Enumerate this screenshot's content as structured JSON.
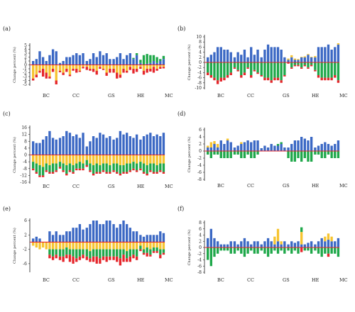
{
  "panels": [
    {
      "label": "(a)",
      "ylabel": "Change percent (%)",
      "ticks": [
        "5",
        "4",
        "3",
        "2",
        "1",
        "0",
        "-1",
        "-2",
        "-3",
        "-4",
        "-5"
      ],
      "groups": [
        "BC",
        "CC",
        "GS",
        "HE",
        "MC"
      ]
    },
    {
      "label": "(b)",
      "ylabel": "Change percent (%)",
      "ticks": [
        "10",
        "8",
        "6",
        "4",
        "2",
        "0",
        "-2",
        "-4",
        "-6",
        "-8",
        "-10"
      ],
      "groups": [
        "BC",
        "CC",
        "GS",
        "HE",
        "MC"
      ]
    },
    {
      "label": "(c)",
      "ylabel": "Change percent (%)",
      "ticks": [
        "16",
        "12",
        "8",
        "4",
        "0",
        "-4",
        "-8",
        "-12",
        "-16"
      ],
      "groups": [
        "BC",
        "CC",
        "GS",
        "HE",
        "MC"
      ]
    },
    {
      "label": "(d)",
      "ylabel": "Change percent (%)",
      "ticks": [
        "6",
        "4",
        "2",
        "0",
        "-2",
        "-4",
        "-6",
        "-8"
      ],
      "groups": [
        "BC",
        "CC",
        "GS",
        "HE",
        "MC"
      ]
    },
    {
      "label": "(e)",
      "ylabel": "Change percent (%)",
      "ticks": [
        "6",
        "2",
        "-2",
        "-6"
      ],
      "groups": [
        "BC",
        "CC",
        "GS",
        "HE",
        "MC"
      ]
    },
    {
      "label": "(f)",
      "ylabel": "Change percent (%)",
      "ticks": [
        "8",
        "6",
        "4",
        "2",
        "0",
        "-2",
        "-4",
        "-6",
        "-8"
      ],
      "groups": [
        "BC",
        "CC",
        "GS",
        "HE",
        "MC"
      ]
    }
  ],
  "colors": {
    "blue": "#3b68c4",
    "green": "#1fa84a",
    "yellow": "#f6c430",
    "red": "#e5262b",
    "axis": "#222222"
  },
  "chart_data": [
    {
      "panel": "(a)",
      "type": "bar",
      "stacked": true,
      "ylim": [
        -5,
        5
      ],
      "categories_per_group": [
        8,
        8,
        8,
        8,
        8
      ],
      "blue": [
        1,
        1.5,
        3.5,
        2,
        1,
        2.5,
        4,
        3.5,
        0.5,
        1,
        2,
        2,
        2.5,
        3,
        2.5,
        3,
        1,
        1.5,
        3,
        2,
        3.5,
        2.5,
        3,
        1.5,
        1.5,
        2,
        3,
        1.5,
        2.5,
        3,
        1.5,
        2.5,
        0.5,
        0,
        0.3,
        0.5,
        1,
        0.5,
        1,
        1.5
      ],
      "green": [
        0,
        0,
        0,
        0,
        0,
        0,
        0,
        0,
        0,
        0,
        0,
        0,
        0,
        0,
        0,
        0,
        0,
        0,
        0,
        0,
        0,
        0,
        0,
        0,
        0,
        0,
        0,
        0,
        0,
        0,
        0.3,
        0.5,
        0.8,
        2.5,
        2.5,
        2,
        1.5,
        1.5,
        0.5,
        0.8
      ],
      "yellow": [
        -3.5,
        -2.5,
        -1.5,
        -1,
        -2,
        -3,
        -1,
        -4,
        -1.5,
        -2,
        -1,
        -2.5,
        -1,
        -1,
        -1.5,
        -0.5,
        -0.5,
        -1,
        -1,
        -1.5,
        -0.5,
        -1,
        -2,
        -1,
        -1,
        -2,
        -2.5,
        -1,
        -1.5,
        -0.5,
        -1,
        -1,
        -0.5,
        -1.5,
        -1,
        -1,
        -0.5,
        -1,
        -0.5,
        -0.5
      ],
      "red": [
        -0.5,
        -0.7,
        -0.5,
        -2,
        -1.5,
        -0.5,
        -0.8,
        -1,
        -0.4,
        -0.6,
        -0.8,
        -0.4,
        -0.5,
        -1,
        -0.3,
        -0.4,
        -0.8,
        -0.5,
        -0.8,
        -1,
        -0.5,
        -0.3,
        -0.8,
        -1,
        -1,
        -1.5,
        -0.8,
        -1,
        -0.5,
        -0.8,
        -1.2,
        -0.8,
        -0.5,
        -1,
        -1,
        -0.7,
        -1.5,
        -0.5,
        -0.5,
        -0.4
      ]
    },
    {
      "panel": "(b)",
      "type": "bar",
      "stacked": true,
      "ylim": [
        -10,
        10
      ],
      "categories_per_group": [
        8,
        8,
        8,
        8,
        8
      ],
      "blue": [
        2,
        3,
        4,
        6,
        6,
        5,
        5,
        4,
        2,
        4,
        3,
        5,
        2,
        6,
        3,
        5,
        2,
        5,
        7,
        6,
        6,
        6,
        5,
        2,
        1,
        2,
        1,
        1,
        2,
        2,
        3,
        2,
        2,
        6,
        6,
        6,
        7,
        5,
        6,
        7
      ],
      "yellow": [
        0,
        0,
        0,
        0,
        0,
        0,
        0,
        0,
        0,
        0,
        0,
        0,
        0,
        0,
        0,
        0,
        0,
        0,
        0,
        0,
        0,
        0,
        0,
        0,
        0.5,
        0.8,
        0.5,
        0.3,
        0.2,
        0.4,
        0.3,
        0.2,
        0.5,
        0,
        0,
        0,
        0,
        0,
        0,
        0.5
      ],
      "green": [
        -4,
        -5,
        -6,
        -7,
        -6,
        -6,
        -5,
        -4,
        -2,
        -3,
        -5,
        -4,
        -2,
        -5,
        -3,
        -4,
        -5,
        -6,
        -6,
        -7,
        -6,
        -6,
        -7,
        -5,
        0,
        -2,
        -1,
        -1,
        -2,
        -1,
        -2,
        -1,
        -3,
        -5,
        -6,
        -6,
        -6,
        -6,
        -5,
        -7
      ],
      "red": [
        -1,
        -1,
        -1,
        -1.5,
        -1.5,
        -1,
        -1,
        -1,
        -0.5,
        -0.5,
        -1,
        -1,
        -0.5,
        -1,
        -0.5,
        -0.5,
        -0.5,
        -1,
        -1,
        -1,
        -1,
        -1,
        -1,
        -0.5,
        -0.5,
        -0.5,
        -0.5,
        -0.5,
        -0.5,
        -0.5,
        -0.5,
        -0.5,
        -0.5,
        -1,
        -1,
        -1,
        -1,
        -1,
        -1,
        -1
      ]
    },
    {
      "panel": "(c)",
      "type": "bar",
      "stacked": true,
      "ylim": [
        -16,
        16
      ],
      "categories_per_group": [
        8,
        8,
        8,
        8,
        8
      ],
      "blue": [
        8,
        7,
        7,
        9,
        11,
        14,
        10,
        9,
        10,
        11,
        14,
        13,
        11,
        12,
        10,
        13,
        5,
        8,
        11,
        10,
        13,
        12,
        10,
        11,
        9,
        10,
        14,
        12,
        13,
        11,
        10,
        12,
        9,
        11,
        12,
        13,
        11,
        12,
        11,
        13
      ],
      "red": [
        -1,
        -1,
        -1,
        -1,
        -1,
        -1,
        -1,
        -1,
        -1,
        -1,
        -1,
        -1,
        -1,
        -1,
        -1,
        -1,
        -1,
        -1,
        -1,
        -1,
        -1,
        -1,
        -1,
        -1,
        -1,
        -1,
        -1,
        -1,
        -1,
        -1,
        -1,
        -1,
        -1,
        -1,
        -1,
        -1,
        -1,
        -1,
        -1,
        -1
      ],
      "yellow": [
        -4,
        -5,
        -6,
        -7,
        -5,
        -6,
        -5,
        -5,
        -4,
        -5,
        -6,
        -5,
        -6,
        -5,
        -4,
        -5,
        -3,
        -5,
        -6,
        -5,
        -6,
        -5,
        -5,
        -6,
        -5,
        -5,
        -6,
        -6,
        -5,
        -5,
        -4,
        -5,
        -4,
        -5,
        -6,
        -5,
        -5,
        -6,
        -5,
        -5
      ],
      "green": [
        -4,
        -5,
        -6,
        -5,
        -4,
        -4,
        -5,
        -4,
        -3,
        -4,
        -5,
        -4,
        -4,
        -3,
        -4,
        -3,
        -3,
        -4,
        -5,
        -5,
        -4,
        -4,
        -5,
        -4,
        -4,
        -5,
        -5,
        -4,
        -5,
        -4,
        -4,
        -4,
        -4,
        -5,
        -5,
        -4,
        -5,
        -4,
        -4,
        -5
      ]
    },
    {
      "panel": "(d)",
      "type": "bar",
      "stacked": true,
      "ylim": [
        -8,
        6
      ],
      "categories_per_group": [
        8,
        8,
        8,
        8,
        8
      ],
      "blue": [
        1,
        1,
        2,
        1,
        3,
        2,
        3,
        2.5,
        1,
        1.5,
        2,
        2.5,
        3,
        2.5,
        3,
        3,
        0.8,
        1.5,
        1,
        2,
        1.5,
        1.5,
        2,
        1,
        1,
        2,
        3,
        3,
        4,
        3.5,
        3,
        4,
        1,
        1.5,
        2,
        2.5,
        2,
        1.5,
        2,
        3
      ],
      "yellow": [
        0.5,
        1.5,
        0.8,
        1,
        0,
        0,
        0.5,
        0,
        0,
        0,
        0.5,
        0,
        0,
        0,
        0,
        0,
        0,
        0,
        0,
        0,
        0,
        0,
        0,
        0,
        0,
        0,
        0,
        0,
        0,
        0,
        0,
        0,
        0,
        0,
        0,
        0,
        0,
        0,
        0,
        0
      ],
      "green": [
        -1,
        -2,
        -1,
        -1,
        -2,
        -2,
        -2,
        -2,
        -1,
        -1,
        -2,
        -2,
        -1,
        -2,
        -2,
        -1,
        0,
        0,
        0,
        0,
        0,
        0.5,
        0.5,
        0,
        -2,
        -3,
        -3,
        -2,
        -3,
        -2,
        -3,
        -3,
        -1,
        -1,
        -2,
        -2,
        -1,
        -2,
        -2,
        -2
      ],
      "red": [
        0,
        0,
        0,
        0,
        0,
        0,
        0,
        0,
        0,
        0,
        0,
        0,
        0,
        0,
        0,
        0,
        0,
        0,
        0,
        0,
        0,
        0,
        0,
        0,
        0,
        0,
        0,
        0,
        0,
        0,
        0,
        0,
        0,
        0,
        0,
        0,
        0,
        0,
        0,
        0
      ]
    },
    {
      "panel": "(e)",
      "type": "bar",
      "stacked": true,
      "ylim": [
        -8,
        6
      ],
      "categories_per_group": [
        8,
        8,
        8,
        8,
        8
      ],
      "blue": [
        1,
        1.5,
        1,
        0,
        0,
        3,
        2,
        3,
        2,
        2,
        3,
        3,
        4,
        4,
        5,
        3.5,
        4,
        5,
        6,
        6,
        5,
        5,
        6,
        6,
        5,
        4,
        5,
        6,
        5,
        4,
        3,
        3,
        2,
        1.5,
        2,
        2,
        2,
        2,
        3,
        2.5
      ],
      "red": [
        0,
        0,
        0,
        0,
        0,
        -1,
        -1,
        -1,
        -1,
        -1.5,
        -1,
        -2,
        -2,
        -1,
        -1,
        -1,
        -1,
        -1,
        -1.5,
        -2,
        -1.5,
        -1,
        -1.5,
        -1,
        -1,
        -1.5,
        -2,
        -2,
        -1,
        -1.5,
        -1,
        -1,
        -0.5,
        -0.5,
        -1,
        -0.5,
        -0.5,
        -0.5,
        -1,
        -0.5
      ],
      "yellow": [
        -1,
        -1.5,
        -2,
        -1.5,
        -2,
        -2,
        -2,
        -2,
        -2,
        -2,
        -1.5,
        -2,
        -2,
        -2,
        -2,
        -2,
        -2,
        -2.5,
        -2,
        -2,
        -2,
        -2,
        -2,
        -2,
        -2,
        -2,
        -2,
        -2,
        -2.5,
        -2,
        -2,
        -2,
        -1,
        -2,
        -1.5,
        -2,
        -1.5,
        -1.5,
        -2,
        -2
      ],
      "green": [
        0,
        0,
        0,
        0,
        0,
        -1.5,
        -2,
        -1.5,
        -2,
        -2,
        -2,
        -1.5,
        -2,
        -2.5,
        -2,
        -1.5,
        -2,
        -2,
        -2,
        -2,
        -2.5,
        -2,
        -2,
        -2,
        -2,
        -2,
        -2.5,
        -1.5,
        -2,
        -2,
        -1.5,
        -2,
        -1,
        -1,
        -1.5,
        -1.5,
        -1,
        -1,
        -1.5,
        -1
      ]
    },
    {
      "panel": "(f)",
      "type": "bar",
      "stacked": true,
      "ylim": [
        -8,
        8
      ],
      "categories_per_group": [
        8,
        8,
        8,
        8,
        8
      ],
      "blue": [
        3,
        6,
        3,
        2,
        1,
        1,
        1,
        2,
        2,
        1,
        2,
        3,
        2,
        1,
        2,
        2,
        1,
        2,
        3,
        2,
        1,
        2,
        1,
        2,
        1,
        2,
        1.5,
        2,
        1,
        1,
        1.5,
        2,
        1,
        2,
        3,
        2,
        2.5,
        2,
        2,
        3
      ],
      "yellow": [
        0,
        0,
        0,
        0,
        0,
        0,
        0,
        0,
        0,
        0,
        0,
        0,
        0,
        0,
        0,
        0,
        0,
        0,
        0,
        0,
        2.5,
        4,
        1,
        0,
        0,
        0,
        0,
        0,
        4,
        0,
        0,
        0,
        0,
        0,
        0,
        1.5,
        2,
        1.5,
        0,
        0
      ],
      "green": [
        -4,
        -6,
        -3,
        -2,
        -1,
        -1,
        -1,
        -2,
        -2,
        -1,
        -2,
        -3,
        -2,
        -1,
        -2,
        -2,
        -1,
        -2,
        -3,
        -2,
        -1,
        -2,
        -1,
        -2,
        -1,
        -2,
        -1,
        -2,
        1.5,
        -1,
        -1,
        -2,
        -1,
        -2,
        -3,
        -2,
        -2,
        -2,
        -2,
        -3
      ],
      "red": [
        0,
        0,
        0,
        0,
        0,
        0,
        0,
        0,
        0,
        0,
        0,
        0,
        0,
        0,
        0,
        0,
        0,
        0,
        0,
        0,
        0,
        0,
        0,
        0,
        0,
        0,
        0,
        0,
        -1.5,
        0,
        0,
        0,
        0,
        0,
        0,
        0,
        -1,
        0,
        0,
        0
      ]
    }
  ]
}
